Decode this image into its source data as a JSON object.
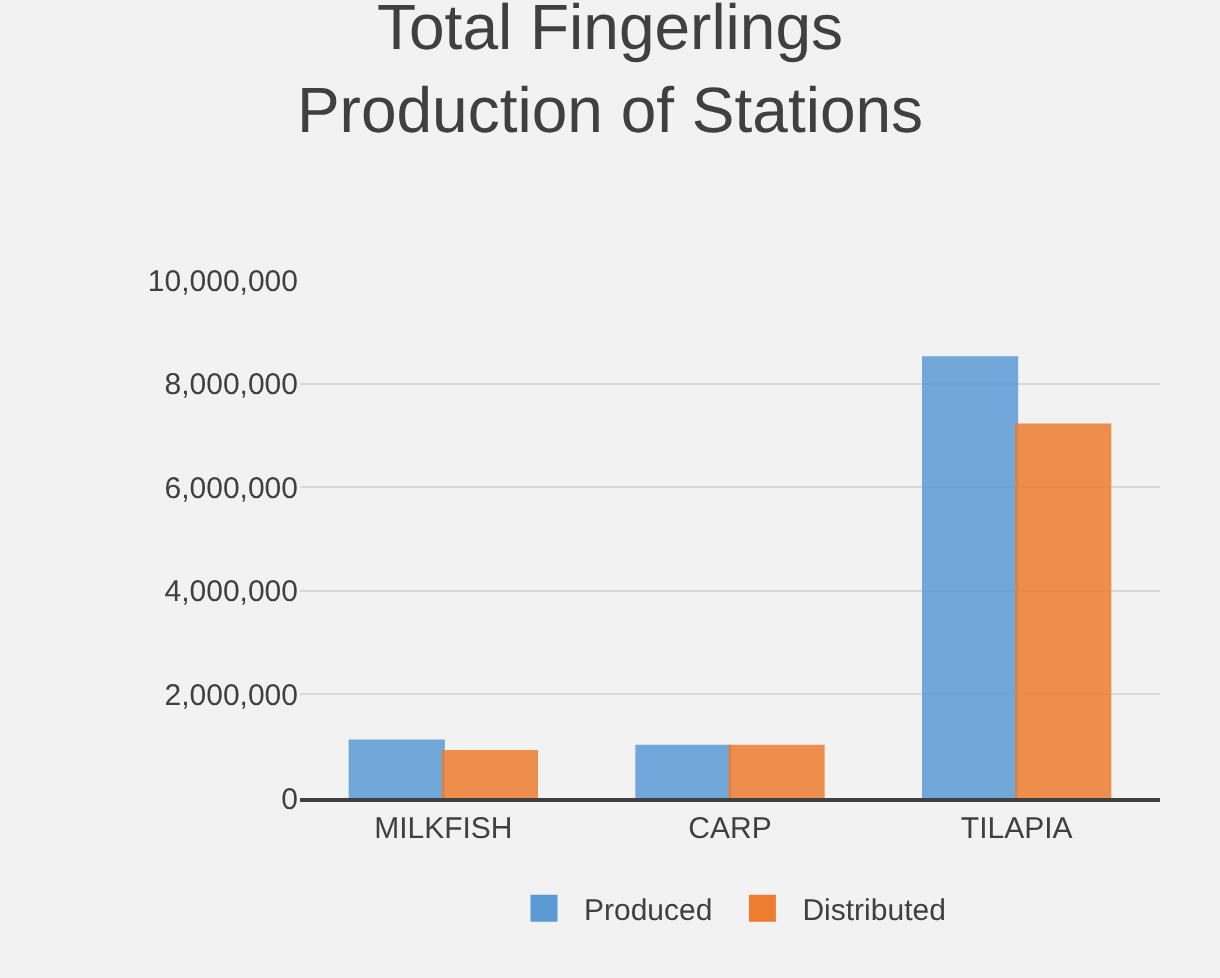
{
  "chart_data": {
    "type": "bar",
    "title": "Total Fingerlings\nProduction of Stations",
    "categories": [
      "MILKFISH",
      "CARP",
      "TILAPIA"
    ],
    "series": [
      {
        "name": "Produced",
        "color": "#5b9bd5",
        "values": [
          1100000,
          1000000,
          8500000
        ]
      },
      {
        "name": "Distributed",
        "color": "#ed7d31",
        "values": [
          900000,
          1000000,
          7200000
        ]
      }
    ],
    "ylim": [
      0,
      10000000
    ],
    "yticks": [
      {
        "value": 0,
        "label": "0"
      },
      {
        "value": 2000000,
        "label": "2,000,000"
      },
      {
        "value": 4000000,
        "label": "4,000,000"
      },
      {
        "value": 6000000,
        "label": "6,000,000"
      },
      {
        "value": 8000000,
        "label": "8,000,000"
      },
      {
        "value": 10000000,
        "label": "10,000,000"
      }
    ],
    "grid": "y",
    "legend": "bottom"
  }
}
